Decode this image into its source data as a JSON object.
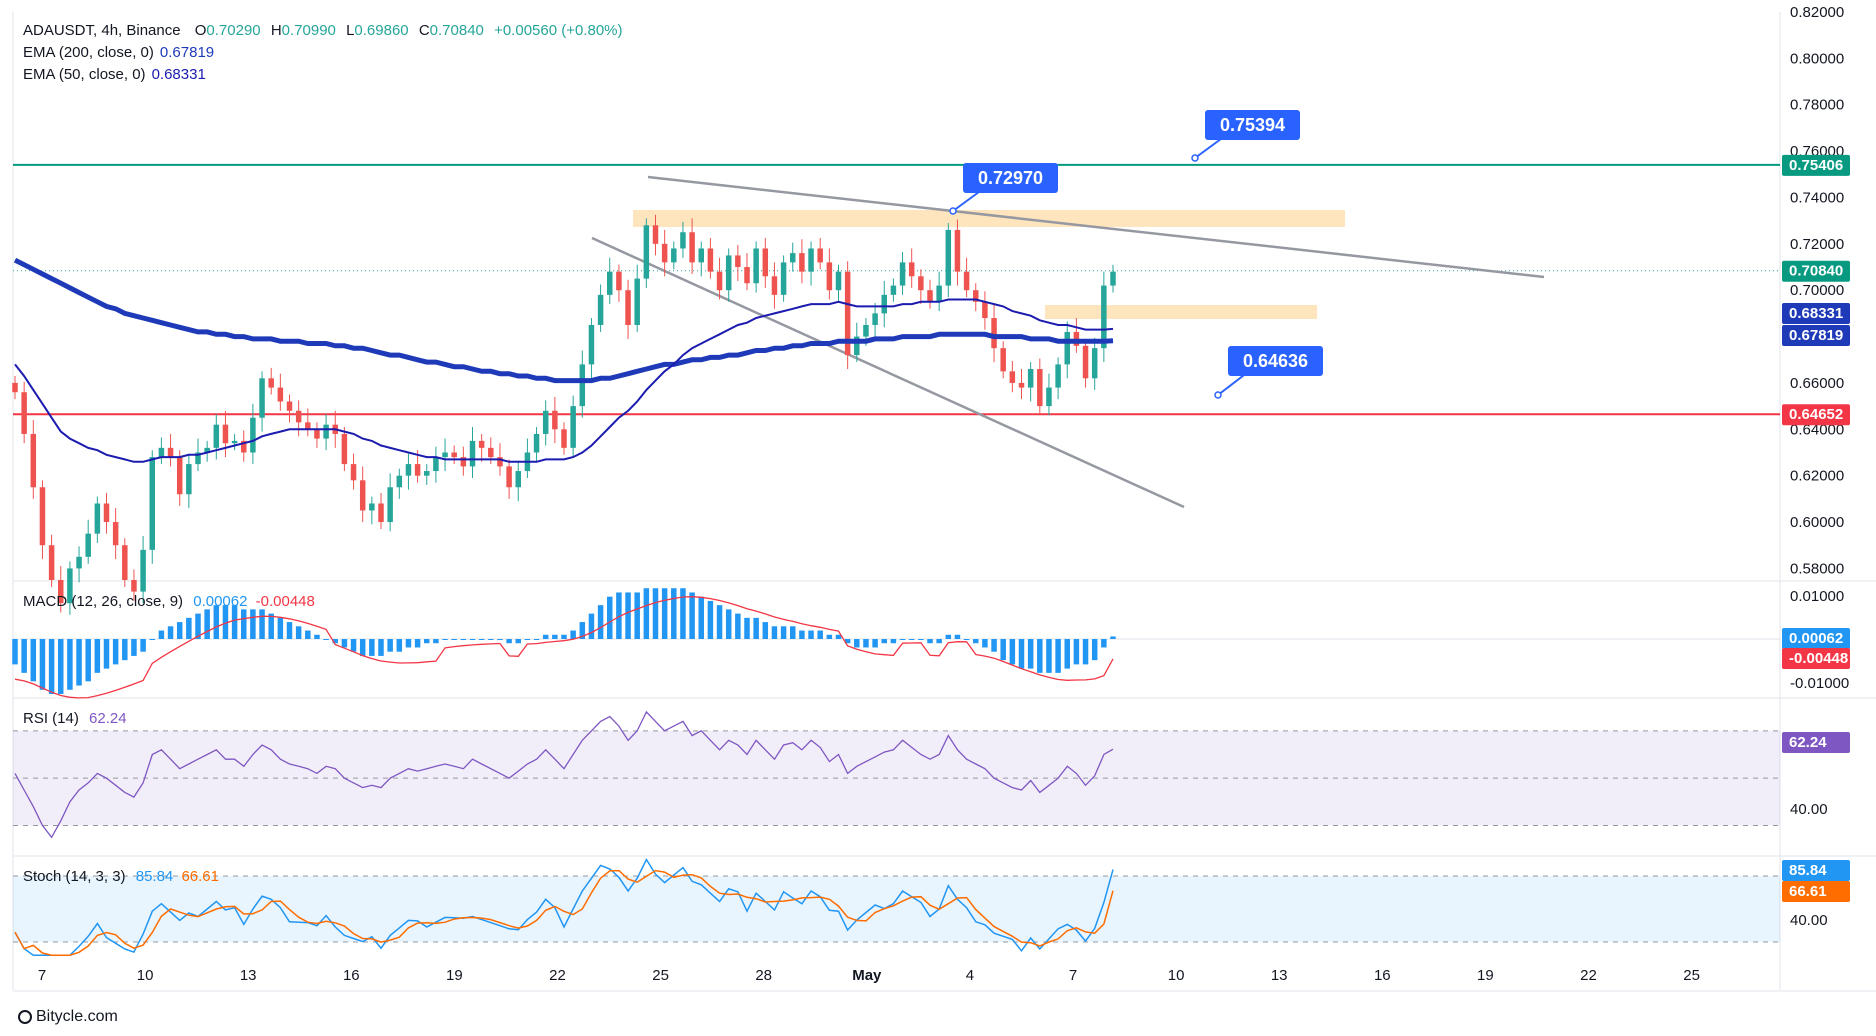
{
  "header": {
    "symbol": "ADAUSDT, 4h, Binance",
    "open_label": "O",
    "open": "0.70290",
    "high_label": "H",
    "high": "0.70990",
    "low_label": "L",
    "low": "0.69860",
    "close_label": "C",
    "close": "0.70840",
    "change": "+0.00560 (+0.80%)",
    "ema200_label": "EMA (200, close, 0)",
    "ema200_value": "0.67819",
    "ema50_label": "EMA (50, close, 0)",
    "ema50_value": "0.68331"
  },
  "indicators": {
    "macd_label": "MACD (12, 26, close, 9)",
    "macd_v1": "0.00062",
    "macd_v2": "-0.00448",
    "rsi_label": "RSI (14)",
    "rsi_value": "62.24",
    "stoch_label": "Stoch (14, 3, 3)",
    "stoch_k": "85.84",
    "stoch_d": "66.61"
  },
  "colors": {
    "up": "#26a69a",
    "down": "#ef5350",
    "ema200": "#1e3ab8",
    "ema50": "#1b1bb0",
    "macd_hist": "#2196f3",
    "macd_signal": "#f23645",
    "rsi": "#7e57c2",
    "stoch_k": "#2196f3",
    "stoch_d": "#ff6d00",
    "callout": "#2962ff",
    "resistance": "#089981",
    "support": "#f23645",
    "zone": "#ffe0b2",
    "trendline": "#9598a1"
  },
  "chart_data": {
    "type": "candlestick",
    "price_axis_ticks": [
      "0.82000",
      "0.80000",
      "0.78000",
      "0.76000",
      "0.74000",
      "0.72000",
      "0.70000",
      "0.68000",
      "0.66000",
      "0.64000",
      "0.62000",
      "0.60000",
      "0.58000"
    ],
    "time_axis_ticks": [
      "7",
      "10",
      "13",
      "16",
      "19",
      "22",
      "25",
      "28",
      "May",
      "4",
      "7",
      "10",
      "13",
      "16",
      "19",
      "22",
      "25"
    ],
    "price_labels": {
      "resistance": "0.75406",
      "last": "0.70840",
      "ema50": "0.68331",
      "ema200": "0.67819",
      "support": "0.64652"
    },
    "callouts": [
      "0.75394",
      "0.72970",
      "0.64636"
    ],
    "levels": {
      "resistance": 0.75406,
      "support": 0.64652
    },
    "close": [
      0.656,
      0.638,
      0.615,
      0.59,
      0.575,
      0.565,
      0.58,
      0.585,
      0.595,
      0.608,
      0.6,
      0.59,
      0.575,
      0.57,
      0.588,
      0.628,
      0.632,
      0.628,
      0.612,
      0.625,
      0.63,
      0.632,
      0.642,
      0.634,
      0.635,
      0.63,
      0.645,
      0.662,
      0.658,
      0.652,
      0.648,
      0.643,
      0.64,
      0.636,
      0.642,
      0.638,
      0.625,
      0.618,
      0.605,
      0.608,
      0.6,
      0.615,
      0.62,
      0.625,
      0.62,
      0.622,
      0.628,
      0.63,
      0.628,
      0.624,
      0.635,
      0.632,
      0.628,
      0.624,
      0.615,
      0.622,
      0.63,
      0.638,
      0.648,
      0.64,
      0.632,
      0.65,
      0.668,
      0.685,
      0.698,
      0.708,
      0.7,
      0.685,
      0.705,
      0.728,
      0.72,
      0.712,
      0.718,
      0.725,
      0.712,
      0.718,
      0.708,
      0.7,
      0.715,
      0.71,
      0.703,
      0.718,
      0.706,
      0.698,
      0.712,
      0.716,
      0.708,
      0.718,
      0.712,
      0.7,
      0.708,
      0.672,
      0.68,
      0.685,
      0.69,
      0.698,
      0.702,
      0.712,
      0.706,
      0.7,
      0.695,
      0.702,
      0.726,
      0.708,
      0.7,
      0.695,
      0.688,
      0.675,
      0.665,
      0.66,
      0.658,
      0.666,
      0.65,
      0.658,
      0.668,
      0.682,
      0.676,
      0.662,
      0.675,
      0.702,
      0.708
    ],
    "ema50": [
      0.668,
      0.663,
      0.657,
      0.651,
      0.645,
      0.639,
      0.636,
      0.634,
      0.632,
      0.631,
      0.629,
      0.628,
      0.627,
      0.626,
      0.626,
      0.627,
      0.628,
      0.628,
      0.628,
      0.629,
      0.629,
      0.63,
      0.631,
      0.632,
      0.633,
      0.634,
      0.635,
      0.637,
      0.638,
      0.639,
      0.64,
      0.64,
      0.64,
      0.64,
      0.64,
      0.64,
      0.639,
      0.638,
      0.636,
      0.635,
      0.633,
      0.632,
      0.631,
      0.63,
      0.629,
      0.628,
      0.628,
      0.627,
      0.627,
      0.627,
      0.627,
      0.627,
      0.627,
      0.627,
      0.626,
      0.626,
      0.626,
      0.626,
      0.627,
      0.627,
      0.627,
      0.628,
      0.63,
      0.633,
      0.637,
      0.641,
      0.645,
      0.648,
      0.652,
      0.657,
      0.661,
      0.665,
      0.668,
      0.672,
      0.675,
      0.677,
      0.679,
      0.681,
      0.683,
      0.685,
      0.686,
      0.688,
      0.689,
      0.69,
      0.691,
      0.692,
      0.693,
      0.694,
      0.694,
      0.694,
      0.695,
      0.694,
      0.693,
      0.693,
      0.693,
      0.693,
      0.693,
      0.694,
      0.694,
      0.695,
      0.695,
      0.695,
      0.696,
      0.696,
      0.696,
      0.696,
      0.695,
      0.694,
      0.693,
      0.691,
      0.69,
      0.689,
      0.687,
      0.686,
      0.685,
      0.685,
      0.684,
      0.683,
      0.683,
      0.683,
      0.6833
    ],
    "ema200": [
      0.713,
      0.711,
      0.709,
      0.707,
      0.705,
      0.703,
      0.701,
      0.699,
      0.697,
      0.695,
      0.693,
      0.692,
      0.69,
      0.689,
      0.688,
      0.687,
      0.686,
      0.685,
      0.684,
      0.683,
      0.682,
      0.682,
      0.681,
      0.681,
      0.68,
      0.68,
      0.679,
      0.679,
      0.679,
      0.678,
      0.678,
      0.678,
      0.677,
      0.677,
      0.677,
      0.676,
      0.676,
      0.675,
      0.675,
      0.674,
      0.673,
      0.672,
      0.672,
      0.671,
      0.67,
      0.669,
      0.669,
      0.668,
      0.667,
      0.667,
      0.666,
      0.665,
      0.665,
      0.664,
      0.664,
      0.663,
      0.663,
      0.662,
      0.662,
      0.661,
      0.661,
      0.661,
      0.661,
      0.661,
      0.662,
      0.662,
      0.663,
      0.664,
      0.665,
      0.666,
      0.667,
      0.668,
      0.668,
      0.669,
      0.67,
      0.67,
      0.671,
      0.671,
      0.672,
      0.672,
      0.673,
      0.674,
      0.674,
      0.675,
      0.675,
      0.676,
      0.676,
      0.677,
      0.677,
      0.677,
      0.678,
      0.678,
      0.678,
      0.678,
      0.679,
      0.679,
      0.679,
      0.68,
      0.68,
      0.68,
      0.68,
      0.681,
      0.681,
      0.681,
      0.681,
      0.681,
      0.681,
      0.68,
      0.68,
      0.68,
      0.68,
      0.679,
      0.679,
      0.679,
      0.678,
      0.678,
      0.678,
      0.678,
      0.678,
      0.678,
      0.6782
    ],
    "macd_axis_ticks": [
      "0.01000",
      "-0.01000"
    ],
    "rsi_axis_ticks": [
      "40.00"
    ],
    "stoch_axis_ticks": [
      "40.00"
    ],
    "rsi": [
      52,
      45,
      38,
      30,
      25,
      32,
      40,
      45,
      48,
      52,
      50,
      47,
      44,
      42,
      48,
      60,
      62,
      58,
      54,
      56,
      58,
      60,
      62,
      58,
      58,
      55,
      60,
      64,
      62,
      58,
      56,
      55,
      54,
      52,
      55,
      54,
      50,
      48,
      46,
      47,
      46,
      50,
      52,
      54,
      53,
      54,
      55,
      56,
      55,
      54,
      58,
      56,
      54,
      52,
      50,
      53,
      56,
      58,
      62,
      58,
      54,
      60,
      66,
      70,
      74,
      76,
      72,
      66,
      70,
      78,
      74,
      70,
      72,
      74,
      68,
      70,
      66,
      62,
      66,
      64,
      60,
      66,
      62,
      58,
      64,
      65,
      62,
      66,
      63,
      57,
      60,
      52,
      55,
      57,
      59,
      61,
      62,
      66,
      63,
      60,
      58,
      60,
      68,
      62,
      58,
      56,
      54,
      50,
      48,
      46,
      45,
      49,
      44,
      47,
      50,
      55,
      52,
      47,
      51,
      60,
      62.24
    ],
    "macd_hist": [
      -0.006,
      -0.008,
      -0.01,
      -0.012,
      -0.013,
      -0.013,
      -0.012,
      -0.011,
      -0.01,
      -0.008,
      -0.007,
      -0.006,
      -0.005,
      -0.004,
      -0.003,
      0.0,
      0.002,
      0.003,
      0.004,
      0.005,
      0.006,
      0.007,
      0.008,
      0.008,
      0.008,
      0.007,
      0.007,
      0.007,
      0.006,
      0.005,
      0.004,
      0.003,
      0.002,
      0.001,
      0.0,
      -0.001,
      -0.002,
      -0.003,
      -0.004,
      -0.004,
      -0.004,
      -0.003,
      -0.003,
      -0.002,
      -0.002,
      -0.001,
      -0.001,
      0.0,
      0.0,
      0.0,
      0.0,
      0.0,
      0.0,
      0.0,
      -0.001,
      -0.001,
      0.0,
      0.0,
      0.001,
      0.001,
      0.001,
      0.002,
      0.004,
      0.006,
      0.008,
      0.01,
      0.011,
      0.011,
      0.011,
      0.012,
      0.012,
      0.012,
      0.012,
      0.012,
      0.011,
      0.01,
      0.009,
      0.008,
      0.007,
      0.006,
      0.005,
      0.005,
      0.004,
      0.003,
      0.003,
      0.003,
      0.002,
      0.002,
      0.002,
      0.001,
      0.001,
      -0.001,
      -0.002,
      -0.002,
      -0.002,
      -0.001,
      -0.001,
      0.0,
      0.0,
      0.0,
      -0.001,
      -0.001,
      0.001,
      0.001,
      0.0,
      -0.001,
      -0.002,
      -0.003,
      -0.005,
      -0.006,
      -0.007,
      -0.007,
      -0.008,
      -0.008,
      -0.008,
      -0.007,
      -0.006,
      -0.006,
      -0.005,
      -0.002,
      0.0006
    ]
  }
}
